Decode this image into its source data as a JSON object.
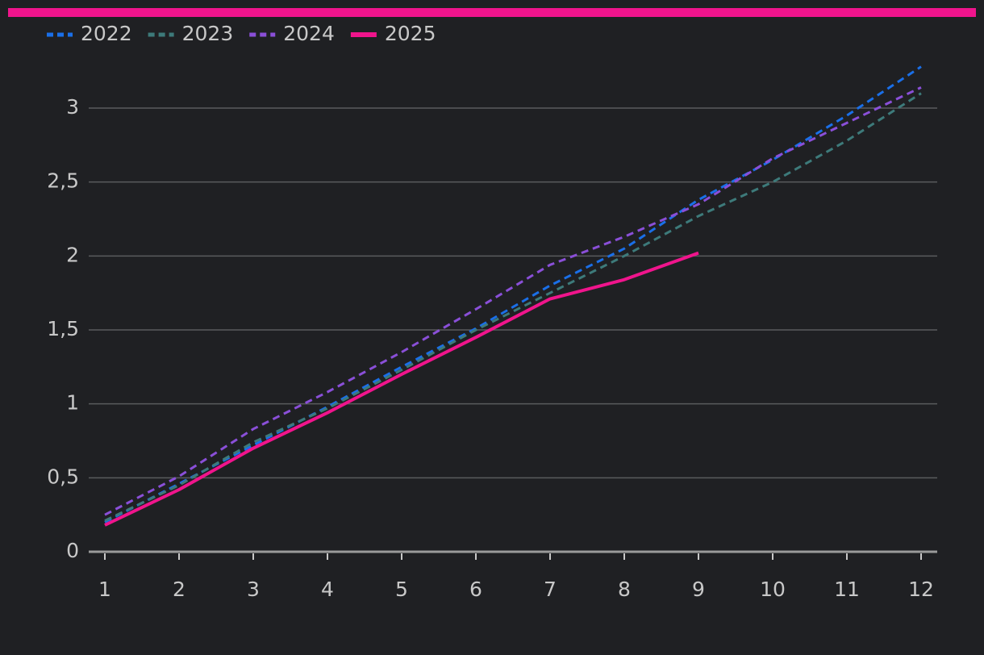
{
  "chart_data": {
    "type": "line",
    "categories": [
      "1",
      "2",
      "3",
      "4",
      "5",
      "6",
      "7",
      "8",
      "9",
      "10",
      "11",
      "12"
    ],
    "series": [
      {
        "name": "2022",
        "color": "#1a6fe8",
        "dashed": true,
        "values": [
          0.2,
          0.46,
          0.72,
          0.98,
          1.25,
          1.51,
          1.8,
          2.05,
          2.38,
          2.65,
          2.95,
          3.28
        ]
      },
      {
        "name": "2023",
        "color": "#3d7a7a",
        "dashed": true,
        "values": [
          0.21,
          0.45,
          0.74,
          0.97,
          1.23,
          1.5,
          1.75,
          2.0,
          2.27,
          2.5,
          2.78,
          3.1
        ]
      },
      {
        "name": "2024",
        "color": "#8a4fd8",
        "dashed": true,
        "values": [
          0.25,
          0.51,
          0.83,
          1.08,
          1.35,
          1.64,
          1.94,
          2.13,
          2.35,
          2.66,
          2.9,
          3.14
        ]
      },
      {
        "name": "2025",
        "color": "#f0148c",
        "dashed": false,
        "values": [
          0.18,
          0.42,
          0.7,
          0.94,
          1.2,
          1.45,
          1.71,
          1.84,
          2.02,
          null,
          null,
          null
        ]
      }
    ],
    "ylim": [
      0,
      3.3
    ],
    "yticks": [
      0,
      {
        "value": 0.5,
        "label": "0,5"
      },
      1,
      {
        "value": 1.5,
        "label": "1,5"
      },
      2,
      {
        "value": 2.5,
        "label": "2,5"
      },
      3
    ],
    "grid": true,
    "legend": "top-left"
  }
}
